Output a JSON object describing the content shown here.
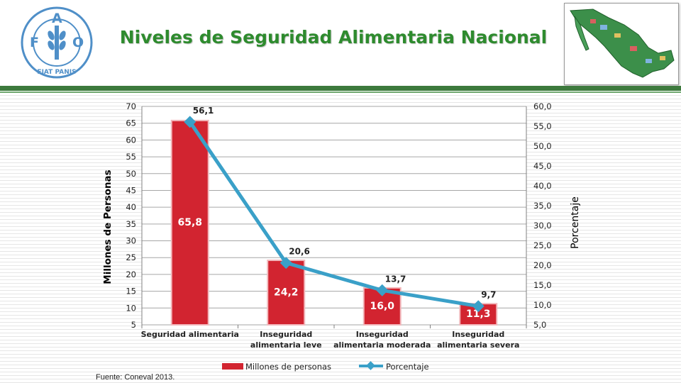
{
  "header": {
    "title": "Niveles de Seguridad Alimentaria Nacional",
    "logo_letters": [
      "F",
      "A",
      "O"
    ],
    "logo_motto": "FIAT PANIS"
  },
  "source_note": "Fuente: Coneval 2013.",
  "colors": {
    "bar": "#d22430",
    "line": "#3aa0c8",
    "title_green": "#2e8b2e",
    "rule_green": "#3d7a3d",
    "logo_blue": "#4f8fc8"
  },
  "chart_data": {
    "type": "bar",
    "categories": [
      [
        "Seguridad alimentaria"
      ],
      [
        "Inseguridad",
        "alimentaria leve"
      ],
      [
        "Inseguridad",
        "alimentaria moderada"
      ],
      [
        "Inseguridad",
        "alimentaria severa"
      ]
    ],
    "series": [
      {
        "name": "Millones de personas",
        "type": "bar",
        "axis": "left",
        "values": [
          65.8,
          24.2,
          16.0,
          11.3
        ],
        "labels": [
          "65,8",
          "24,2",
          "16,0",
          "11,3"
        ]
      },
      {
        "name": "Porcentaje",
        "type": "line",
        "axis": "right",
        "values": [
          56.1,
          20.6,
          13.7,
          9.7
        ],
        "labels": [
          "56,1",
          "20,6",
          "13,7",
          "9,7"
        ]
      }
    ],
    "ylabel": "Millones de Personas",
    "y2label": "Porcentaje",
    "ylim": [
      5,
      70
    ],
    "y2lim": [
      5,
      60
    ],
    "yticks": [
      "5",
      "10",
      "15",
      "20",
      "25",
      "30",
      "35",
      "40",
      "45",
      "50",
      "55",
      "60",
      "65",
      "70"
    ],
    "y2ticks": [
      "5,0",
      "10,0",
      "15,0",
      "20,0",
      "25,0",
      "30,0",
      "35,0",
      "40,0",
      "45,0",
      "50,0",
      "55,0",
      "60,0"
    ],
    "grid": true,
    "legend": "bottom"
  }
}
